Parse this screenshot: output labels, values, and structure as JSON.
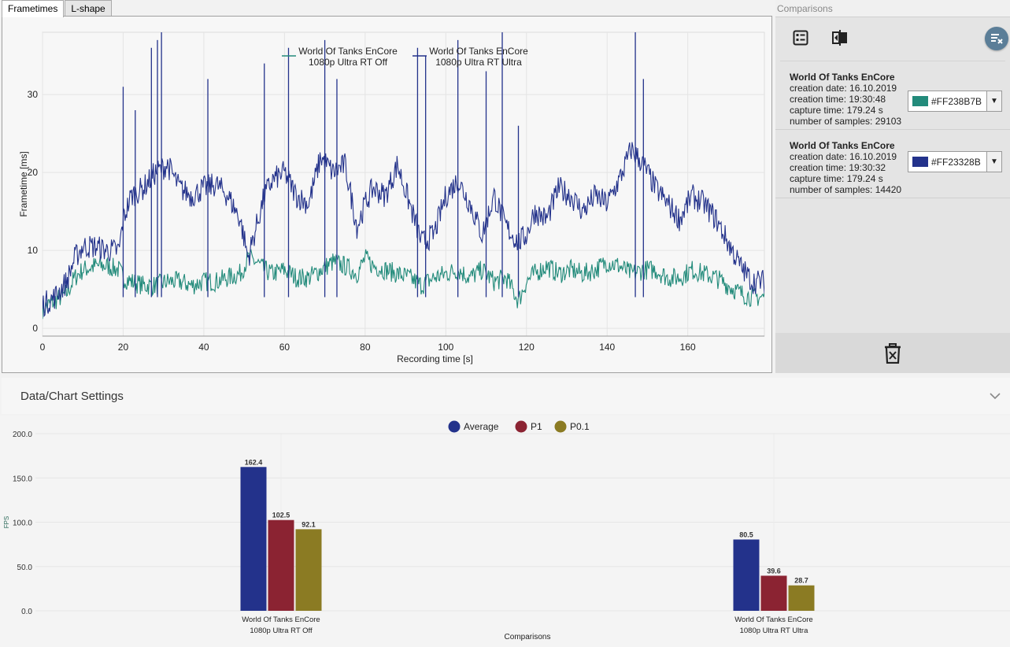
{
  "tabs": [
    {
      "label": "Frametimes"
    },
    {
      "label": "L-shape"
    }
  ],
  "comparisons": {
    "header": "Comparisons",
    "items": [
      {
        "name": "World Of Tanks EnCore",
        "creation_date": "creation date: 16.10.2019",
        "creation_time": "creation time: 19:30:48",
        "capture_time": "capture time: 179.24 s",
        "samples": "number of samples: 29103",
        "color_label": "#FF238B7B",
        "color": "#238B7B"
      },
      {
        "name": "World Of Tanks EnCore",
        "creation_date": "creation date: 16.10.2019",
        "creation_time": "creation time: 19:30:32",
        "capture_time": "capture time: 179.24 s",
        "samples": "number of samples: 14420",
        "color_label": "#FF23328B",
        "color": "#23328B"
      }
    ]
  },
  "settings": {
    "title": "Data/Chart Settings"
  },
  "chart_data": [
    {
      "type": "line",
      "xlabel": "Recording time [s]",
      "ylabel": "Frametime [ms]",
      "xlim": [
        0,
        179
      ],
      "ylim": [
        -1,
        38
      ],
      "xticks": [
        0,
        20,
        40,
        60,
        80,
        100,
        120,
        140,
        160
      ],
      "yticks": [
        0,
        10,
        20,
        30
      ],
      "series": [
        {
          "name": "World Of Tanks EnCore 1080p Ultra RT Off",
          "legend_line1": "World Of Tanks EnCore",
          "legend_line2": "1080p Ultra RT Off",
          "color": "#238B7B",
          "x": [
            0,
            3,
            6,
            8,
            10,
            13,
            16,
            19,
            20,
            22,
            25,
            28,
            31,
            34,
            37,
            40,
            43,
            46,
            49,
            51,
            53,
            55,
            57,
            60,
            63,
            66,
            69,
            72,
            75,
            78,
            80,
            82,
            85,
            88,
            91,
            94,
            97,
            100,
            103,
            106,
            109,
            112,
            115,
            118,
            120,
            122,
            125,
            128,
            131,
            134,
            137,
            140,
            143,
            146,
            149,
            152,
            155,
            158,
            161,
            164,
            167,
            170,
            173,
            176,
            179
          ],
          "y": [
            2.5,
            3.5,
            4.5,
            6.5,
            7.5,
            8,
            8,
            7.5,
            6.5,
            6,
            5.5,
            5.5,
            6,
            6,
            5.5,
            6,
            6,
            6.5,
            7,
            9,
            8.5,
            7.5,
            7,
            7.5,
            6.5,
            6.5,
            7.5,
            8.5,
            8,
            7,
            9,
            8,
            7.5,
            7,
            6.5,
            5.5,
            6.5,
            7,
            7.5,
            6.5,
            7.5,
            6,
            6.5,
            3.5,
            6,
            7,
            8,
            7,
            7.5,
            7,
            7.5,
            8.5,
            8,
            7,
            7.5,
            7.5,
            6.5,
            6.5,
            7.5,
            7,
            6.5,
            5.5,
            4.5,
            4,
            4
          ]
        },
        {
          "name": "World Of Tanks EnCore 1080p Ultra RT Ultra",
          "legend_line1": "World Of Tanks EnCore",
          "legend_line2": "1080p Ultra RT Ultra",
          "color": "#23328B",
          "x": [
            0,
            3,
            6,
            8,
            10,
            13,
            16,
            19,
            20,
            22,
            25,
            28,
            31,
            34,
            37,
            40,
            43,
            46,
            49,
            51,
            53,
            55,
            57,
            60,
            63,
            66,
            69,
            72,
            75,
            78,
            80,
            82,
            85,
            88,
            91,
            94,
            97,
            100,
            103,
            106,
            109,
            112,
            115,
            118,
            120,
            122,
            125,
            128,
            131,
            134,
            137,
            140,
            143,
            146,
            149,
            152,
            155,
            158,
            161,
            164,
            167,
            170,
            173,
            176,
            179
          ],
          "y": [
            3,
            4,
            6,
            9,
            10.5,
            10.5,
            10,
            10,
            14,
            17,
            18,
            20,
            21,
            18,
            17,
            18,
            18.5,
            17,
            14,
            9,
            13,
            17,
            19,
            20,
            17,
            16,
            22,
            20,
            21,
            13,
            16,
            18,
            17,
            21,
            16,
            11,
            12,
            17,
            19,
            16,
            12,
            17,
            13,
            11,
            12,
            15,
            14,
            18,
            17,
            15,
            17,
            16,
            19,
            23,
            21,
            18,
            16,
            14,
            17,
            16,
            14,
            11,
            8,
            6,
            6
          ]
        }
      ]
    },
    {
      "type": "bar",
      "xlabel": "Comparisons",
      "ylabel": "FPS",
      "ylim": [
        0,
        200
      ],
      "yticks": [
        "0.0",
        "50.0",
        "100.0",
        "150.0",
        "200.0"
      ],
      "legend": [
        {
          "name": "Average",
          "color": "#23328B"
        },
        {
          "name": "P1",
          "color": "#8B2332"
        },
        {
          "name": "P0.1",
          "color": "#8B7B23"
        }
      ],
      "categories": [
        {
          "line1": "World Of Tanks EnCore",
          "line2": "1080p Ultra RT Off"
        },
        {
          "line1": "World Of Tanks EnCore",
          "line2": "1080p Ultra RT Ultra"
        }
      ],
      "series": [
        {
          "name": "Average",
          "values": [
            162.4,
            80.5
          ],
          "labels": [
            "162.4",
            "80.5"
          ]
        },
        {
          "name": "P1",
          "values": [
            102.5,
            39.6
          ],
          "labels": [
            "102.5",
            "39.6"
          ]
        },
        {
          "name": "P0.1",
          "values": [
            92.1,
            28.7
          ],
          "labels": [
            "92.1",
            "28.7"
          ]
        }
      ]
    }
  ]
}
